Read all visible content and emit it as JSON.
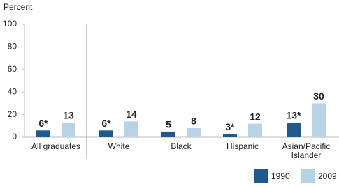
{
  "chart_data": {
    "type": "bar",
    "y_label": "Percent",
    "categories": [
      "All graduates",
      "White",
      "Black",
      "Hispanic",
      "Asian/Pacific Islander"
    ],
    "series": [
      {
        "name": "1990",
        "color": "#1f5a8f",
        "values": [
          6,
          6,
          5,
          3,
          13
        ],
        "value_labels": [
          "6*",
          "6*",
          "5",
          "3*",
          "13*"
        ]
      },
      {
        "name": "2009",
        "color": "#b9d3e6",
        "values": [
          13,
          14,
          8,
          12,
          30
        ]
      }
    ],
    "ylim": [
      0,
      100
    ],
    "yticks": [
      0,
      20,
      40,
      60,
      80,
      100
    ],
    "grid": false
  }
}
